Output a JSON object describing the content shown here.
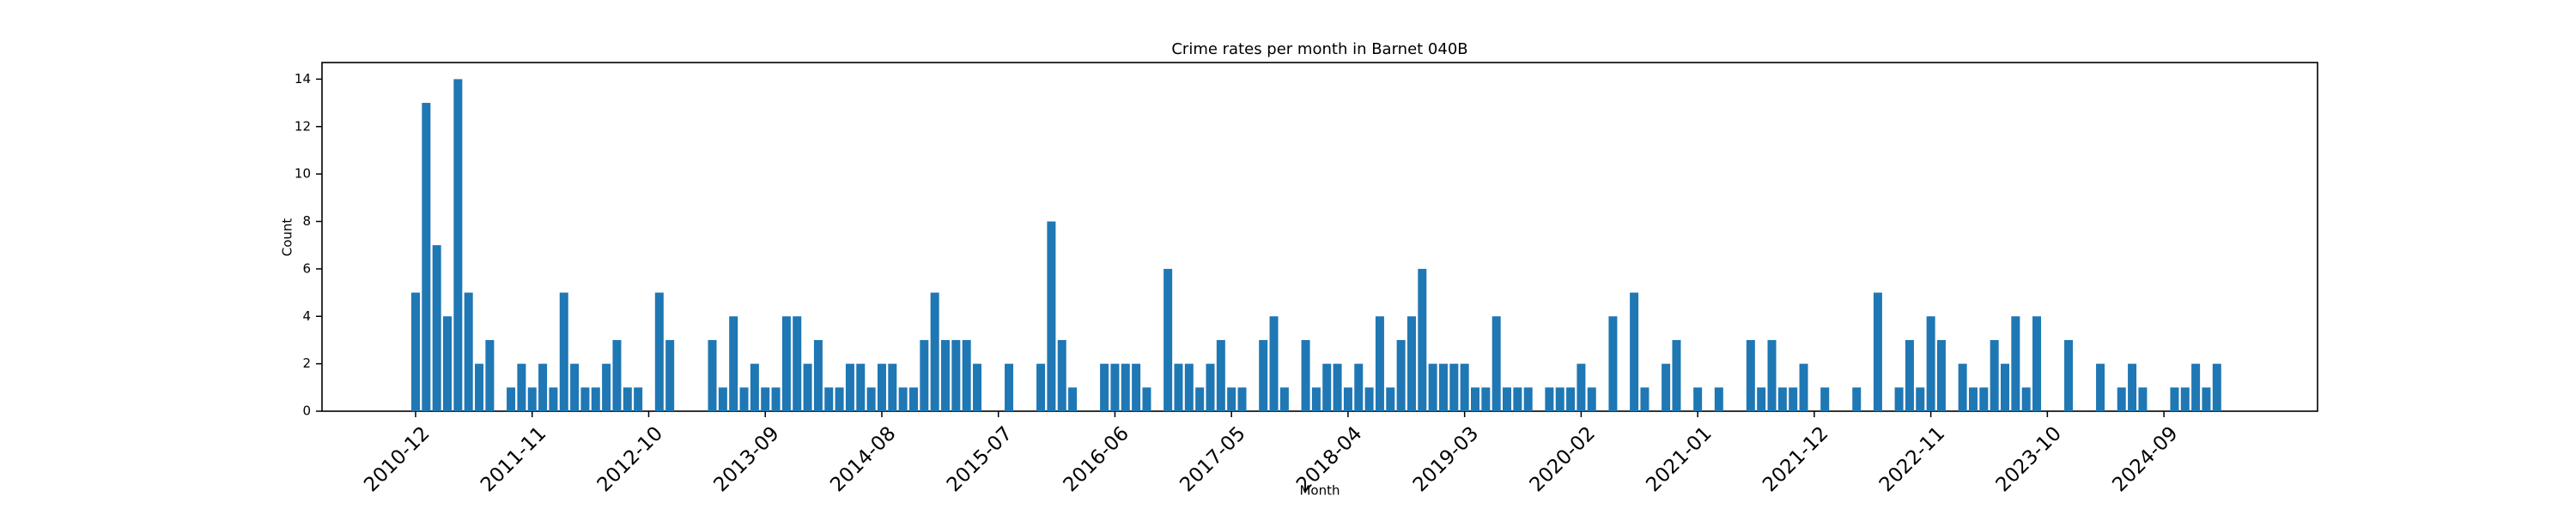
{
  "chart_data": {
    "type": "bar",
    "title": "Crime rates per month in Barnet 040B",
    "x_label": "Month",
    "y_label": "Count",
    "color": "#1f77b4",
    "categories": [
      "2010-12",
      null,
      null,
      null,
      null,
      null,
      null,
      null,
      null,
      null,
      null,
      "2011-11",
      null,
      null,
      null,
      null,
      null,
      null,
      null,
      null,
      null,
      null,
      "2012-10",
      null,
      null,
      null,
      null,
      null,
      null,
      null,
      null,
      null,
      null,
      "2013-09",
      null,
      null,
      null,
      null,
      null,
      null,
      null,
      null,
      null,
      null,
      "2014-08",
      null,
      null,
      null,
      null,
      null,
      null,
      null,
      null,
      null,
      null,
      "2015-07",
      null,
      null,
      null,
      null,
      null,
      null,
      null,
      null,
      null,
      null,
      "2016-06",
      null,
      null,
      null,
      null,
      null,
      null,
      null,
      null,
      null,
      null,
      "2017-05",
      null,
      null,
      null,
      null,
      null,
      null,
      null,
      null,
      null,
      null,
      "2018-04",
      null,
      null,
      null,
      null,
      null,
      null,
      null,
      null,
      null,
      null,
      "2019-03",
      null,
      null,
      null,
      null,
      null,
      null,
      null,
      null,
      null,
      null,
      "2020-02",
      null,
      null,
      null,
      null,
      null,
      null,
      null,
      null,
      null,
      null,
      "2021-01",
      null,
      null,
      null,
      null,
      null,
      null,
      null,
      null,
      null,
      null,
      "2021-12",
      null,
      null,
      null,
      null,
      null,
      null,
      null,
      null,
      null,
      null,
      "2022-11",
      null,
      null,
      null,
      null,
      null,
      null,
      null,
      null,
      null,
      null,
      "2023-10",
      null,
      null,
      null,
      null,
      null,
      null,
      null,
      null,
      null,
      null,
      "2024-09",
      null,
      null,
      null,
      null,
      null
    ],
    "values": [
      5,
      13,
      7,
      4,
      14,
      5,
      2,
      3,
      0,
      1,
      2,
      1,
      2,
      1,
      5,
      2,
      1,
      1,
      2,
      3,
      1,
      1,
      0,
      5,
      3,
      0,
      0,
      0,
      3,
      1,
      4,
      1,
      2,
      1,
      1,
      4,
      4,
      2,
      3,
      1,
      1,
      2,
      2,
      1,
      2,
      2,
      1,
      1,
      3,
      5,
      3,
      3,
      3,
      2,
      0,
      0,
      2,
      0,
      0,
      2,
      8,
      3,
      1,
      0,
      0,
      2,
      2,
      2,
      2,
      1,
      0,
      6,
      2,
      2,
      1,
      2,
      3,
      1,
      1,
      0,
      3,
      4,
      1,
      0,
      3,
      1,
      2,
      2,
      1,
      2,
      1,
      4,
      1,
      3,
      4,
      6,
      2,
      2,
      2,
      2,
      1,
      1,
      4,
      1,
      1,
      1,
      0,
      1,
      1,
      1,
      2,
      1,
      0,
      4,
      0,
      5,
      1,
      0,
      2,
      3,
      0,
      1,
      0,
      1,
      0,
      0,
      3,
      1,
      3,
      1,
      1,
      2,
      0,
      1,
      0,
      0,
      1,
      0,
      5,
      0,
      1,
      3,
      1,
      4,
      3,
      0,
      2,
      1,
      1,
      3,
      2,
      4,
      1,
      4,
      0,
      0,
      3,
      0,
      0,
      2,
      0,
      1,
      2,
      1,
      0,
      0,
      1,
      1,
      2,
      1,
      2
    ],
    "ylim": [
      0,
      14.7
    ],
    "yticks": [
      0,
      2,
      4,
      6,
      8,
      10,
      12,
      14
    ]
  }
}
